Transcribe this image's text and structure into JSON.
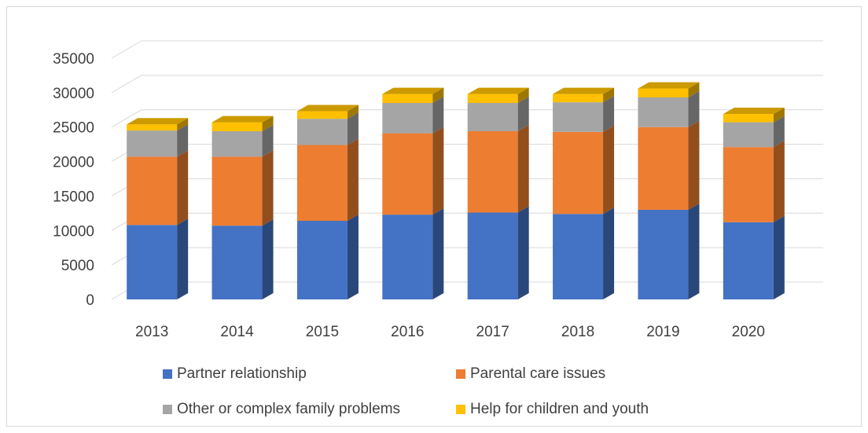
{
  "chart_data": {
    "type": "bar",
    "stacked": true,
    "three_d": true,
    "categories": [
      "2013",
      "2014",
      "2015",
      "2016",
      "2017",
      "2018",
      "2019",
      "2020"
    ],
    "series": [
      {
        "name": "Partner relationship",
        "color": "#4472c4",
        "values": [
          10800,
          10700,
          11400,
          12300,
          12600,
          12400,
          13000,
          11200
        ]
      },
      {
        "name": "Parental care issues",
        "color": "#ed7d31",
        "values": [
          9900,
          10000,
          11000,
          11800,
          11800,
          11900,
          12000,
          10900
        ]
      },
      {
        "name": "Other or complex family problems",
        "color": "#a5a5a5",
        "values": [
          3800,
          3700,
          3800,
          4400,
          4100,
          4300,
          4300,
          3600
        ]
      },
      {
        "name": "Help for children and youth",
        "color": "#ffc000",
        "values": [
          900,
          1300,
          1100,
          1300,
          1300,
          1200,
          1300,
          1200
        ]
      }
    ],
    "y_ticks": [
      "0",
      "5000",
      "10000",
      "15000",
      "20000",
      "25000",
      "30000",
      "35000"
    ],
    "ylim": [
      0,
      35000
    ],
    "title": "",
    "xlabel": "",
    "ylabel": "",
    "grid": true,
    "legend_position": "bottom"
  }
}
